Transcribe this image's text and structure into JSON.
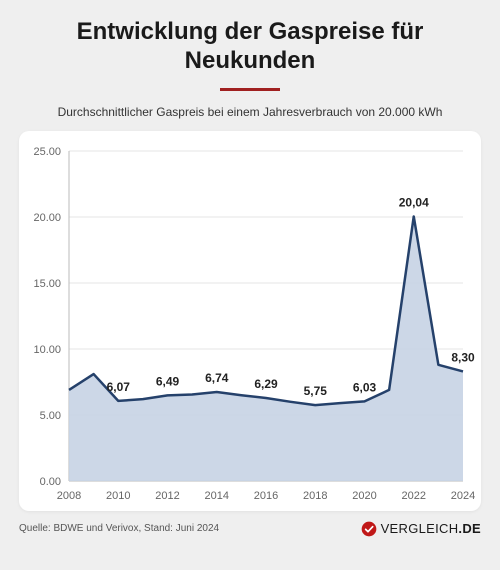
{
  "header": {
    "title_line1": "Entwicklung der Gaspreise für",
    "title_line2": "Neukunden",
    "subtitle": "Durchschnittlicher Gaspreis bei einem Jahresverbrauch von 20.000 kWh"
  },
  "chart": {
    "type": "area-line",
    "background_color": "#ffffff",
    "page_background": "#efefef",
    "grid_color": "#e6e6e6",
    "axis_color": "#bbbbbb",
    "line_color": "#25416b",
    "fill_color": "#c6d3e4",
    "line_width": 2.5,
    "ylim": [
      0,
      25
    ],
    "ytick_step": 5,
    "ytick_labels": [
      "0.00",
      "5.00",
      "10.00",
      "15.00",
      "20.00",
      "25.00"
    ],
    "xlim": [
      2008,
      2024
    ],
    "xtick_step": 2,
    "xtick_labels": [
      "2008",
      "2010",
      "2012",
      "2014",
      "2016",
      "2018",
      "2020",
      "2022",
      "2024"
    ],
    "series": {
      "years": [
        2008,
        2009,
        2010,
        2011,
        2012,
        2013,
        2014,
        2015,
        2016,
        2017,
        2018,
        2019,
        2020,
        2021,
        2022,
        2023,
        2024
      ],
      "values": [
        6.9,
        8.1,
        6.07,
        6.2,
        6.49,
        6.55,
        6.74,
        6.5,
        6.29,
        6.0,
        5.75,
        5.9,
        6.03,
        6.9,
        20.04,
        8.8,
        8.3
      ]
    },
    "point_labels": [
      {
        "year": 2010,
        "text": "6,07",
        "dy": -10
      },
      {
        "year": 2012,
        "text": "6,49",
        "dy": -10
      },
      {
        "year": 2014,
        "text": "6,74",
        "dy": -10
      },
      {
        "year": 2016,
        "text": "6,29",
        "dy": -10
      },
      {
        "year": 2018,
        "text": "5,75",
        "dy": -10
      },
      {
        "year": 2020,
        "text": "6,03",
        "dy": -10
      },
      {
        "year": 2022,
        "text": "20,04",
        "dy": -10
      },
      {
        "year": 2024,
        "text": "8,30",
        "dy": -10
      }
    ],
    "label_fontsize": 12,
    "tick_fontsize": 11
  },
  "footer": {
    "source": "Quelle: BDWE und Verivox, Stand: Juni 2024",
    "brand_text": "VERGLEICH",
    "brand_suffix": ".DE",
    "brand_icon_color": "#c01818",
    "brand_check_color": "#ffffff"
  },
  "colors": {
    "title_underline": "#a02020",
    "text_primary": "#1a1a1a",
    "text_secondary": "#555555"
  }
}
